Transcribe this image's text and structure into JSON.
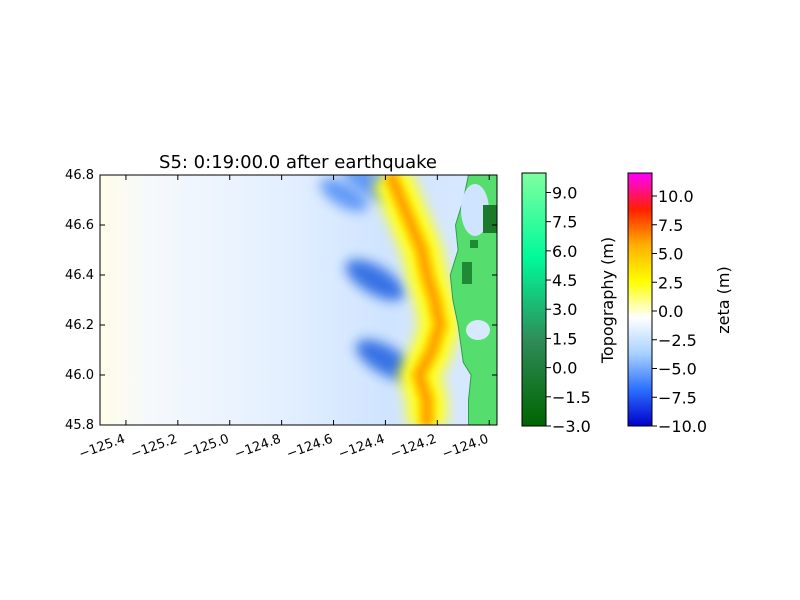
{
  "chart_data": {
    "type": "heatmap",
    "title": "S5: 0:19:00.0 after earthquake",
    "xlabel": "",
    "ylabel": "",
    "xlim": [
      -125.5,
      -123.97
    ],
    "ylim": [
      45.8,
      46.8
    ],
    "x_ticks": [
      -125.4,
      -125.2,
      -125.0,
      -124.8,
      -124.6,
      -124.4,
      -124.2,
      -124.0
    ],
    "x_tick_labels": [
      "−125.4",
      "−125.2",
      "−125.0",
      "−124.8",
      "−124.6",
      "−124.4",
      "−124.2",
      "−124.0"
    ],
    "y_ticks": [
      45.8,
      46.0,
      46.2,
      46.4,
      46.6,
      46.8
    ],
    "y_tick_labels": [
      "45.8",
      "46.0",
      "46.2",
      "46.4",
      "46.6",
      "46.8"
    ],
    "coastline_lon_by_lat": [
      [
        45.8,
        -124.08
      ],
      [
        45.9,
        -124.08
      ],
      [
        46.0,
        -124.07
      ],
      [
        46.05,
        -124.1
      ],
      [
        46.2,
        -124.12
      ],
      [
        46.3,
        -124.14
      ],
      [
        46.4,
        -124.15
      ],
      [
        46.5,
        -124.12
      ],
      [
        46.6,
        -124.13
      ],
      [
        46.7,
        -124.1
      ],
      [
        46.8,
        -124.08
      ]
    ],
    "wavefront_lon_by_lat": [
      [
        45.8,
        -124.24
      ],
      [
        45.9,
        -124.24
      ],
      [
        46.0,
        -124.27
      ],
      [
        46.1,
        -124.22
      ],
      [
        46.2,
        -124.19
      ],
      [
        46.3,
        -124.21
      ],
      [
        46.4,
        -124.24
      ],
      [
        46.5,
        -124.26
      ],
      [
        46.6,
        -124.3
      ],
      [
        46.7,
        -124.34
      ],
      [
        46.8,
        -124.38
      ]
    ],
    "troughs": [
      {
        "lon": -124.44,
        "lat": 46.38,
        "zeta": -6.0
      },
      {
        "lon": -124.4,
        "lat": 46.06,
        "zeta": -6.0
      },
      {
        "lon": -124.46,
        "lat": 46.77,
        "zeta": -5.0
      },
      {
        "lon": -124.56,
        "lat": 46.72,
        "zeta": -3.5
      }
    ],
    "colorbars": [
      {
        "label": "Topography (m)",
        "range": [
          -3.0,
          10.0
        ],
        "ticks": [
          "−3.0",
          "−1.5",
          "0.0",
          "1.5",
          "3.0",
          "4.5",
          "6.0",
          "7.5",
          "9.0"
        ],
        "tick_values": [
          -3.0,
          -1.5,
          0.0,
          1.5,
          3.0,
          4.5,
          6.0,
          7.5,
          9.0
        ],
        "colors": [
          "#006400",
          "#2e8b57",
          "#00fa9a",
          "#7fffa0"
        ]
      },
      {
        "label": "zeta (m)",
        "range": [
          -10.0,
          12.0
        ],
        "ticks": [
          "−10.0",
          "−7.5",
          "−5.0",
          "−2.5",
          "0.0",
          "2.5",
          "5.0",
          "7.5",
          "10.0"
        ],
        "tick_values": [
          -10.0,
          -7.5,
          -5.0,
          -2.5,
          0.0,
          2.5,
          5.0,
          7.5,
          10.0
        ],
        "colors": [
          "#0000cc",
          "#2a6fff",
          "#a8d1ff",
          "#ffffff",
          "#ffff00",
          "#ffb000",
          "#ff2000",
          "#ff00ff"
        ]
      }
    ]
  }
}
